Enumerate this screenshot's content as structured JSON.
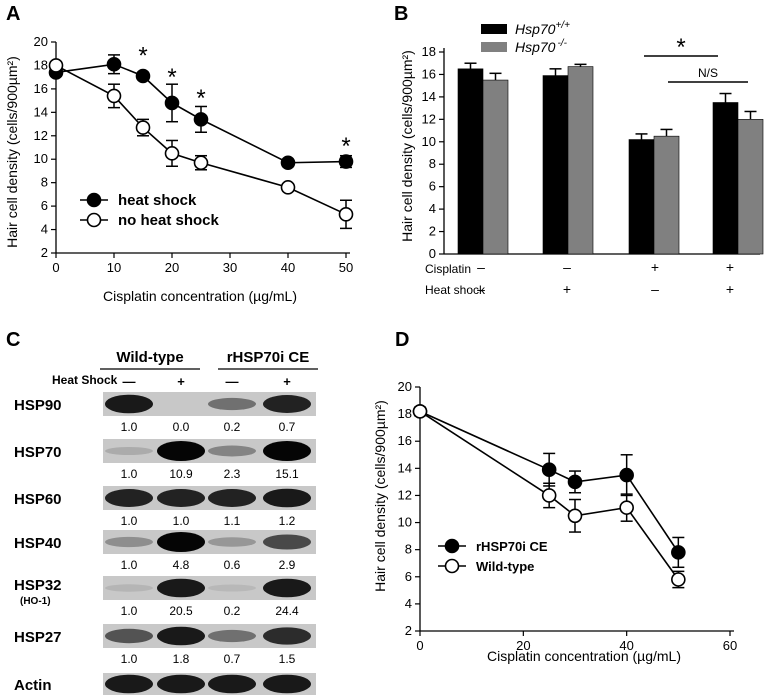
{
  "panel_letters": {
    "a": "A",
    "b": "B",
    "c": "C",
    "d": "D"
  },
  "chart_data": [
    {
      "panel": "A",
      "type": "line",
      "xlabel": "Cisplatin concentration (µg/mL)",
      "ylabel": "Hair cell density (cells/900µm²)",
      "xlim": [
        0,
        50
      ],
      "ylim": [
        2,
        20
      ],
      "xticks": [
        0,
        10,
        20,
        30,
        40,
        50
      ],
      "yticks": [
        2,
        4,
        6,
        8,
        10,
        12,
        14,
        16,
        18,
        20
      ],
      "legend_position": "bottom-left",
      "series": [
        {
          "name": "heat shock",
          "marker": "filled",
          "x": [
            0,
            10,
            15,
            20,
            25,
            40,
            50
          ],
          "y": [
            17.4,
            18.1,
            17.1,
            14.8,
            13.4,
            9.7,
            9.8
          ],
          "err": [
            0.3,
            0.8,
            0.3,
            1.6,
            1.1,
            0.3,
            0.5
          ]
        },
        {
          "name": "no heat shock",
          "marker": "open",
          "x": [
            0,
            10,
            15,
            20,
            25,
            40,
            50
          ],
          "y": [
            18.0,
            15.4,
            12.7,
            10.5,
            9.7,
            7.6,
            5.3
          ],
          "err": [
            0.3,
            1.0,
            0.7,
            1.1,
            0.6,
            0.3,
            1.2
          ]
        }
      ],
      "annotations": [
        {
          "text": "*",
          "x": 15,
          "y": 19.0
        },
        {
          "text": "*",
          "x": 20,
          "y": 17.2
        },
        {
          "text": "*",
          "x": 25,
          "y": 15.4
        },
        {
          "text": "*",
          "x": 50,
          "y": 11.3
        }
      ]
    },
    {
      "panel": "B",
      "type": "bar",
      "ylabel": "Hair cell density (cells/900µm²)",
      "ylim": [
        0,
        18
      ],
      "yticks": [
        0,
        2,
        4,
        6,
        8,
        10,
        12,
        14,
        16,
        18
      ],
      "legend_position": "top-left",
      "series": [
        {
          "name": "Hsp70",
          "superscript": "+/+",
          "color": "#000000",
          "values": [
            16.5,
            15.9,
            10.2,
            13.5
          ],
          "err": [
            0.5,
            0.6,
            0.5,
            0.8
          ]
        },
        {
          "name": "Hsp70",
          "superscript": "-/-",
          "color": "#808080",
          "values": [
            15.5,
            16.7,
            10.5,
            12.0
          ],
          "err": [
            0.6,
            0.2,
            0.6,
            0.7
          ]
        }
      ],
      "conditions": [
        {
          "label": "Cisplatin",
          "values": [
            "–",
            "–",
            "+",
            "+"
          ]
        },
        {
          "label": "Heat shock",
          "values": [
            "–",
            "+",
            "–",
            "+"
          ]
        }
      ],
      "annotations": {
        "star": "*",
        "ns": "N/S"
      }
    },
    {
      "panel": "D",
      "type": "line",
      "xlabel": "Cisplatin concentration (µg/mL)",
      "ylabel": "Hair cell density (cells/900µm²)",
      "xlim": [
        0,
        60
      ],
      "ylim": [
        2,
        20
      ],
      "xticks": [
        0,
        20,
        40,
        60
      ],
      "xtick_labels": [
        "0",
        "20",
        "40",
        "60"
      ],
      "yticks": [
        2,
        4,
        6,
        8,
        10,
        12,
        14,
        16,
        18,
        20
      ],
      "legend_position": "bottom-left",
      "series": [
        {
          "name": "rHSP70i CE",
          "marker": "filled",
          "x": [
            0,
            25,
            30,
            40,
            50
          ],
          "y": [
            18.2,
            13.9,
            13.0,
            13.5,
            7.8
          ],
          "err": [
            0.3,
            1.2,
            0.8,
            1.5,
            1.1
          ]
        },
        {
          "name": "Wild-type",
          "marker": "open",
          "x": [
            0,
            25,
            30,
            40,
            50
          ],
          "y": [
            18.2,
            12.0,
            10.5,
            11.1,
            5.8
          ],
          "err": [
            0.3,
            0.9,
            1.2,
            1.0,
            0.6
          ]
        }
      ]
    }
  ],
  "blot": {
    "groups": [
      "Wild-type",
      "rHSP70i CE"
    ],
    "heat_shock_label": "Heat Shock",
    "lane_signs": [
      "—",
      "+",
      "—",
      "+"
    ],
    "rows": [
      {
        "label": "HSP90",
        "values": [
          "1.0",
          "0.0",
          "0.2",
          "0.7"
        ],
        "intensity": [
          0.9,
          0.0,
          0.45,
          0.85
        ]
      },
      {
        "label": "HSP70",
        "values": [
          "1.0",
          "10.9",
          "2.3",
          "15.1"
        ],
        "intensity": [
          0.15,
          1.0,
          0.35,
          1.0
        ]
      },
      {
        "label": "HSP60",
        "values": [
          "1.0",
          "1.0",
          "1.1",
          "1.2"
        ],
        "intensity": [
          0.85,
          0.85,
          0.85,
          0.9
        ]
      },
      {
        "label": "HSP40",
        "values": [
          "4.8",
          "0.6",
          "2.9"
        ],
        "first_value": "1.0",
        "intensity": [
          0.3,
          1.0,
          0.25,
          0.65
        ]
      },
      {
        "label": "HSP32",
        "sub": "(HO-1)",
        "values": [
          "1.0",
          "20.5",
          "0.2",
          "24.4"
        ],
        "intensity": [
          0.1,
          0.9,
          0.08,
          0.9
        ]
      },
      {
        "label": "HSP27",
        "values": [
          "1.0",
          "1.8",
          "0.7",
          "1.5"
        ],
        "intensity": [
          0.6,
          0.9,
          0.45,
          0.8
        ]
      },
      {
        "label": "Actin",
        "values": [],
        "intensity": [
          0.9,
          0.9,
          0.9,
          0.9
        ]
      }
    ]
  }
}
